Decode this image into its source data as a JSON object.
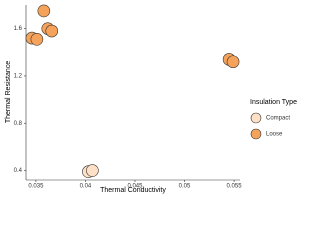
{
  "chart_data": {
    "type": "scatter",
    "x_label": "Thermal Conductivity",
    "y_label": "Thermal Resistance",
    "legend_title": "Insulation Type",
    "legend": "right",
    "xlim": [
      0.034,
      0.0556
    ],
    "xticks": [
      0.035,
      0.04,
      0.045,
      0.05,
      0.055
    ],
    "ylim": [
      0.32,
      1.8
    ],
    "yticks": [
      0.4,
      0.8,
      1.2,
      1.6
    ],
    "series": [
      {
        "name": "Compact",
        "color": "#fde0c5",
        "x": [
          0.0403,
          0.0407
        ],
        "values": [
          0.39,
          0.4
        ]
      },
      {
        "name": "Loose",
        "color": "#f5a35a",
        "x": [
          0.0346,
          0.0351,
          0.0358,
          0.0362,
          0.0366,
          0.0545,
          0.0549
        ],
        "values": [
          1.52,
          1.51,
          1.75,
          1.6,
          1.58,
          1.34,
          1.32
        ]
      }
    ]
  }
}
